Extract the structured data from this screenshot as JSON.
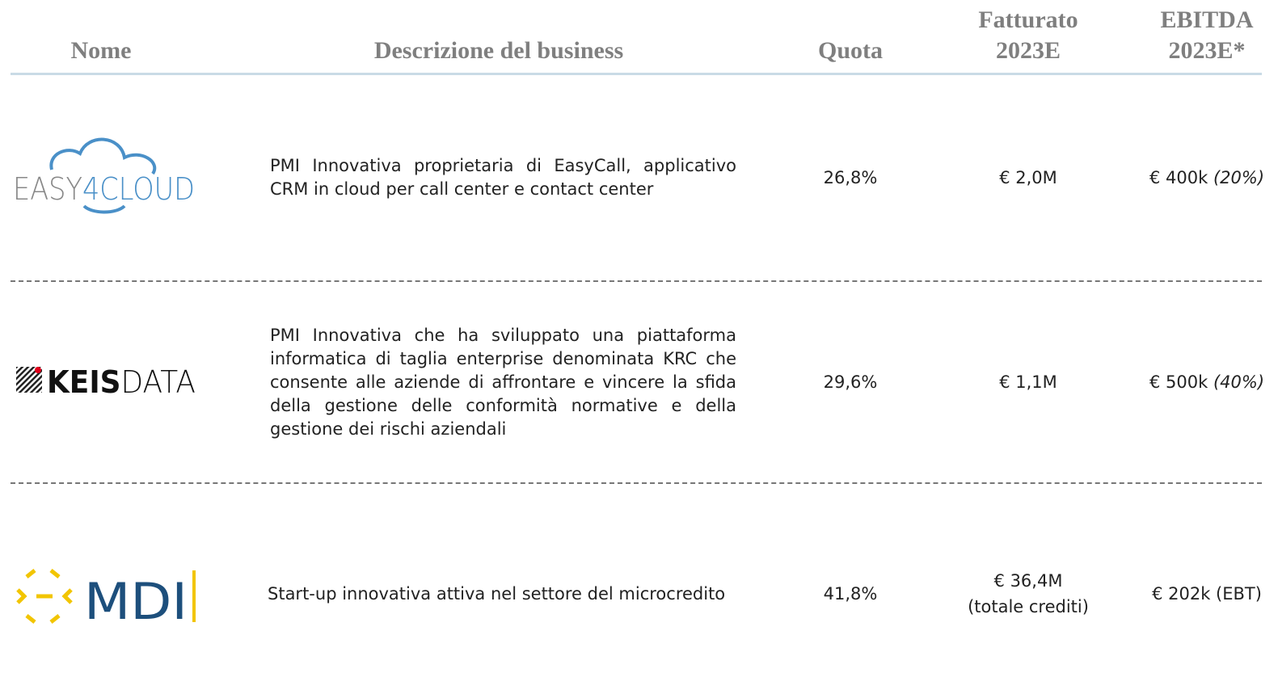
{
  "header": {
    "columns": [
      [
        "Nome"
      ],
      [
        "Descrizione del business"
      ],
      [
        "Quota"
      ],
      [
        "Fatturato",
        "2023E"
      ],
      [
        "EBITDA",
        "2023E*"
      ]
    ]
  },
  "table": {
    "rows": [
      {
        "logo": [
          "EASY",
          "4CLOUD"
        ],
        "description": "PMI Innovativa proprietaria di EasyCall, applicativo CRM in cloud per call center e contact center",
        "quota": "26,8%",
        "fatturato": [
          "€ 2,0M"
        ],
        "ebitda": "€ 400k",
        "ebitda_note": "(20%)"
      },
      {
        "logo": [
          "KEIS",
          "DATA"
        ],
        "description": "PMI Innovativa che ha sviluppato una piattaforma informatica di taglia enterprise denominata KRC che consente alle aziende di affrontare e vincere la sfida della gestione delle conformità normative e della gestione dei rischi aziendali",
        "quota": "29,6%",
        "fatturato": [
          "€ 1,1M"
        ],
        "ebitda": "€ 500k",
        "ebitda_note": "(40%)"
      },
      {
        "logo": [
          "MDI"
        ],
        "description": "Start-up innovativa attiva nel settore del microcredito",
        "quota": "41,8%",
        "fatturato": [
          "€ 36,4M",
          "(totale crediti)"
        ],
        "ebitda": "€ 202k (EBT)"
      }
    ]
  }
}
